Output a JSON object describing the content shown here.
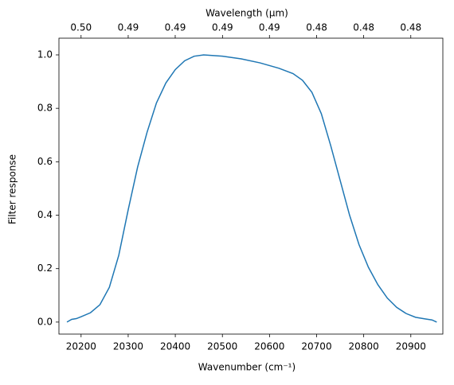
{
  "chart_data": {
    "type": "line",
    "xlabel": "Wavenumber (cm⁻¹)",
    "ylabel": "Filter response",
    "x2label": "Wavelength (μm)",
    "x": [
      20170,
      20180,
      20190,
      20200,
      20220,
      20240,
      20260,
      20280,
      20300,
      20320,
      20340,
      20360,
      20380,
      20400,
      20420,
      20440,
      20460,
      20500,
      20540,
      20580,
      20620,
      20650,
      20670,
      20690,
      20710,
      20730,
      20750,
      20770,
      20790,
      20810,
      20830,
      20850,
      20870,
      20890,
      20910,
      20930,
      20945,
      20955
    ],
    "series": [
      {
        "color": "#1f77b4",
        "values": [
          0.0,
          0.01,
          0.013,
          0.02,
          0.035,
          0.065,
          0.13,
          0.25,
          0.42,
          0.58,
          0.71,
          0.82,
          0.895,
          0.945,
          0.978,
          0.995,
          1.0,
          0.995,
          0.985,
          0.97,
          0.95,
          0.93,
          0.905,
          0.86,
          0.78,
          0.66,
          0.53,
          0.4,
          0.29,
          0.205,
          0.14,
          0.09,
          0.055,
          0.032,
          0.018,
          0.012,
          0.008,
          0.0
        ]
      }
    ],
    "xlim": [
      20153,
      20968
    ],
    "ylim": [
      -0.045,
      1.0625
    ],
    "xticks": [
      20200,
      20300,
      20400,
      20500,
      20600,
      20700,
      20800,
      20900
    ],
    "yticks": [
      {
        "value": 0,
        "label": "0.0"
      },
      0.2,
      0.4,
      0.6,
      0.8,
      {
        "value": 1,
        "label": "1.0"
      }
    ],
    "x2ticks": [
      {
        "value": 0.49505,
        "label": "0.50"
      },
      {
        "value": 0.49261,
        "label": "0.49"
      },
      {
        "value": 0.4902,
        "label": "0.49"
      },
      {
        "value": 0.4878,
        "label": "0.49"
      },
      {
        "value": 0.48544,
        "label": "0.49"
      },
      {
        "value": 0.48309,
        "label": "0.48"
      },
      {
        "value": 0.48077,
        "label": "0.48"
      },
      {
        "value": 0.47847,
        "label": "0.48"
      }
    ]
  }
}
